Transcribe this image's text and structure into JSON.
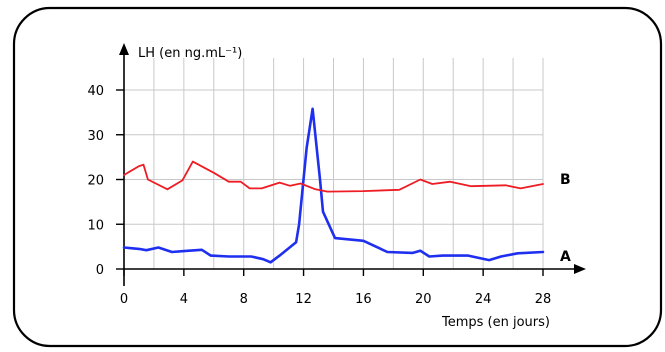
{
  "chart_data": {
    "type": "line",
    "ylabel": "LH (en ng.mL⁻¹)",
    "xlabel": "Temps (en jours)",
    "xlim": [
      0,
      28
    ],
    "ylim": [
      0,
      40
    ],
    "x_ticks": [
      0,
      4,
      8,
      12,
      16,
      20,
      24,
      28
    ],
    "y_ticks": [
      0,
      10,
      20,
      30,
      40
    ],
    "grid": true,
    "series": [
      {
        "name": "A",
        "color": "#1f2ff0",
        "points": [
          [
            0,
            4.8
          ],
          [
            1,
            4.5
          ],
          [
            1.5,
            4.2
          ],
          [
            2.3,
            4.8
          ],
          [
            3.2,
            3.8
          ],
          [
            4,
            4.0
          ],
          [
            5.2,
            4.3
          ],
          [
            5.8,
            3.0
          ],
          [
            7,
            2.8
          ],
          [
            8,
            2.8
          ],
          [
            8.5,
            2.8
          ],
          [
            9.3,
            2.2
          ],
          [
            9.8,
            1.5
          ],
          [
            10.4,
            3.0
          ],
          [
            11.5,
            6.0
          ],
          [
            11.7,
            10.0
          ],
          [
            12.2,
            27.0
          ],
          [
            12.6,
            35.8
          ],
          [
            13.1,
            20.0
          ],
          [
            13.3,
            12.8
          ],
          [
            14.1,
            6.9
          ],
          [
            16,
            6.3
          ],
          [
            17.6,
            3.8
          ],
          [
            19.3,
            3.6
          ],
          [
            19.8,
            4.1
          ],
          [
            20.4,
            2.8
          ],
          [
            21.3,
            3.0
          ],
          [
            23,
            3.0
          ],
          [
            24.4,
            2.0
          ],
          [
            25.2,
            2.8
          ],
          [
            26.3,
            3.5
          ],
          [
            28,
            3.8
          ]
        ]
      },
      {
        "name": "B",
        "color": "#ee1c24",
        "points": [
          [
            0,
            21.0
          ],
          [
            1,
            23.0
          ],
          [
            1.3,
            23.3
          ],
          [
            1.6,
            20.0
          ],
          [
            2.9,
            17.8
          ],
          [
            3.9,
            19.8
          ],
          [
            4.6,
            24.0
          ],
          [
            6,
            21.5
          ],
          [
            7,
            19.5
          ],
          [
            7.8,
            19.5
          ],
          [
            8.4,
            18.0
          ],
          [
            9.2,
            18.0
          ],
          [
            10.4,
            19.3
          ],
          [
            11.1,
            18.6
          ],
          [
            11.8,
            19.1
          ],
          [
            12.8,
            17.8
          ],
          [
            13.6,
            17.3
          ],
          [
            16,
            17.4
          ],
          [
            18.4,
            17.7
          ],
          [
            19.8,
            20.0
          ],
          [
            20.6,
            19.0
          ],
          [
            21.8,
            19.5
          ],
          [
            23.2,
            18.5
          ],
          [
            25.5,
            18.7
          ],
          [
            26.5,
            18.0
          ],
          [
            28,
            19.0
          ]
        ]
      }
    ]
  }
}
